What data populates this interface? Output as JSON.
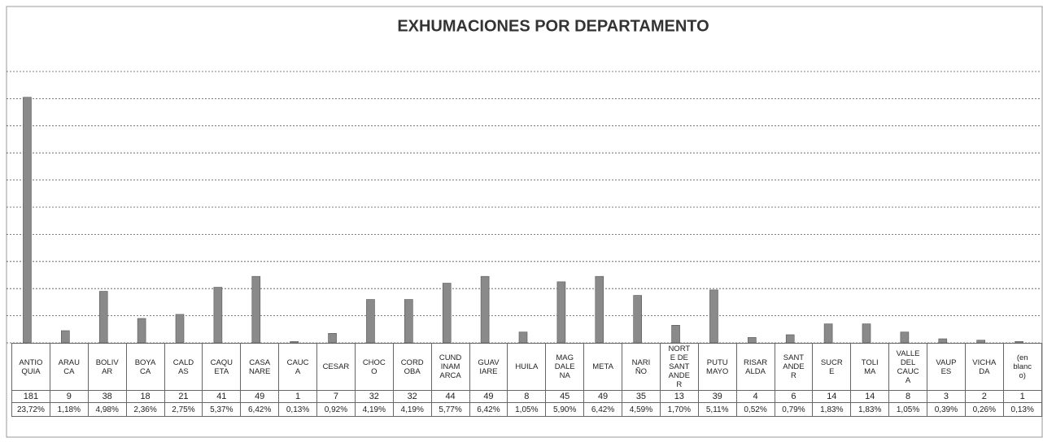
{
  "chart_data": {
    "type": "bar",
    "title": "EXHUMACIONES POR DEPARTAMENTO",
    "categories": [
      "ANTIO\nQUIA",
      "ARAU\nCA",
      "BOLIV\nAR",
      "BOYA\nCA",
      "CALD\nAS",
      "CAQU\nETA",
      "CASA\nNARE",
      "CAUC\nA",
      "CESAR",
      "CHOC\nO",
      "CORD\nOBA",
      "CUND\nINAM\nARCA",
      "GUAV\nIARE",
      "HUILA",
      "MAG\nDALE\nNA",
      "META",
      "NARI\nÑO",
      "NORT\nE DE\nSANT\nANDE\nR",
      "PUTU\nMAYO",
      "RISAR\nALDA",
      "SANT\nANDE\nR",
      "SUCR\nE",
      "TOLI\nMA",
      "VALLE\nDEL\nCAUC\nA",
      "VAUP\nES",
      "VICHA\nDA",
      "(en\nblanc\no)"
    ],
    "values": [
      181,
      9,
      38,
      18,
      21,
      41,
      49,
      1,
      7,
      32,
      32,
      44,
      49,
      8,
      45,
      49,
      35,
      13,
      39,
      4,
      6,
      14,
      14,
      8,
      3,
      2,
      1
    ],
    "percent_labels": [
      "23,72%",
      "1,18%",
      "4,98%",
      "2,36%",
      "2,75%",
      "5,37%",
      "6,42%",
      "0,13%",
      "0,92%",
      "4,19%",
      "4,19%",
      "5,77%",
      "6,42%",
      "1,05%",
      "5,90%",
      "6,42%",
      "4,59%",
      "1,70%",
      "5,11%",
      "0,52%",
      "0,79%",
      "1,83%",
      "1,83%",
      "1,05%",
      "0,39%",
      "0,26%",
      "0,13%"
    ],
    "color": "#8a8a8a",
    "ylim": [
      0,
      200
    ],
    "yticks": [
      0,
      20,
      40,
      60,
      80,
      100,
      120,
      140,
      160,
      180,
      200
    ],
    "grid": true
  }
}
